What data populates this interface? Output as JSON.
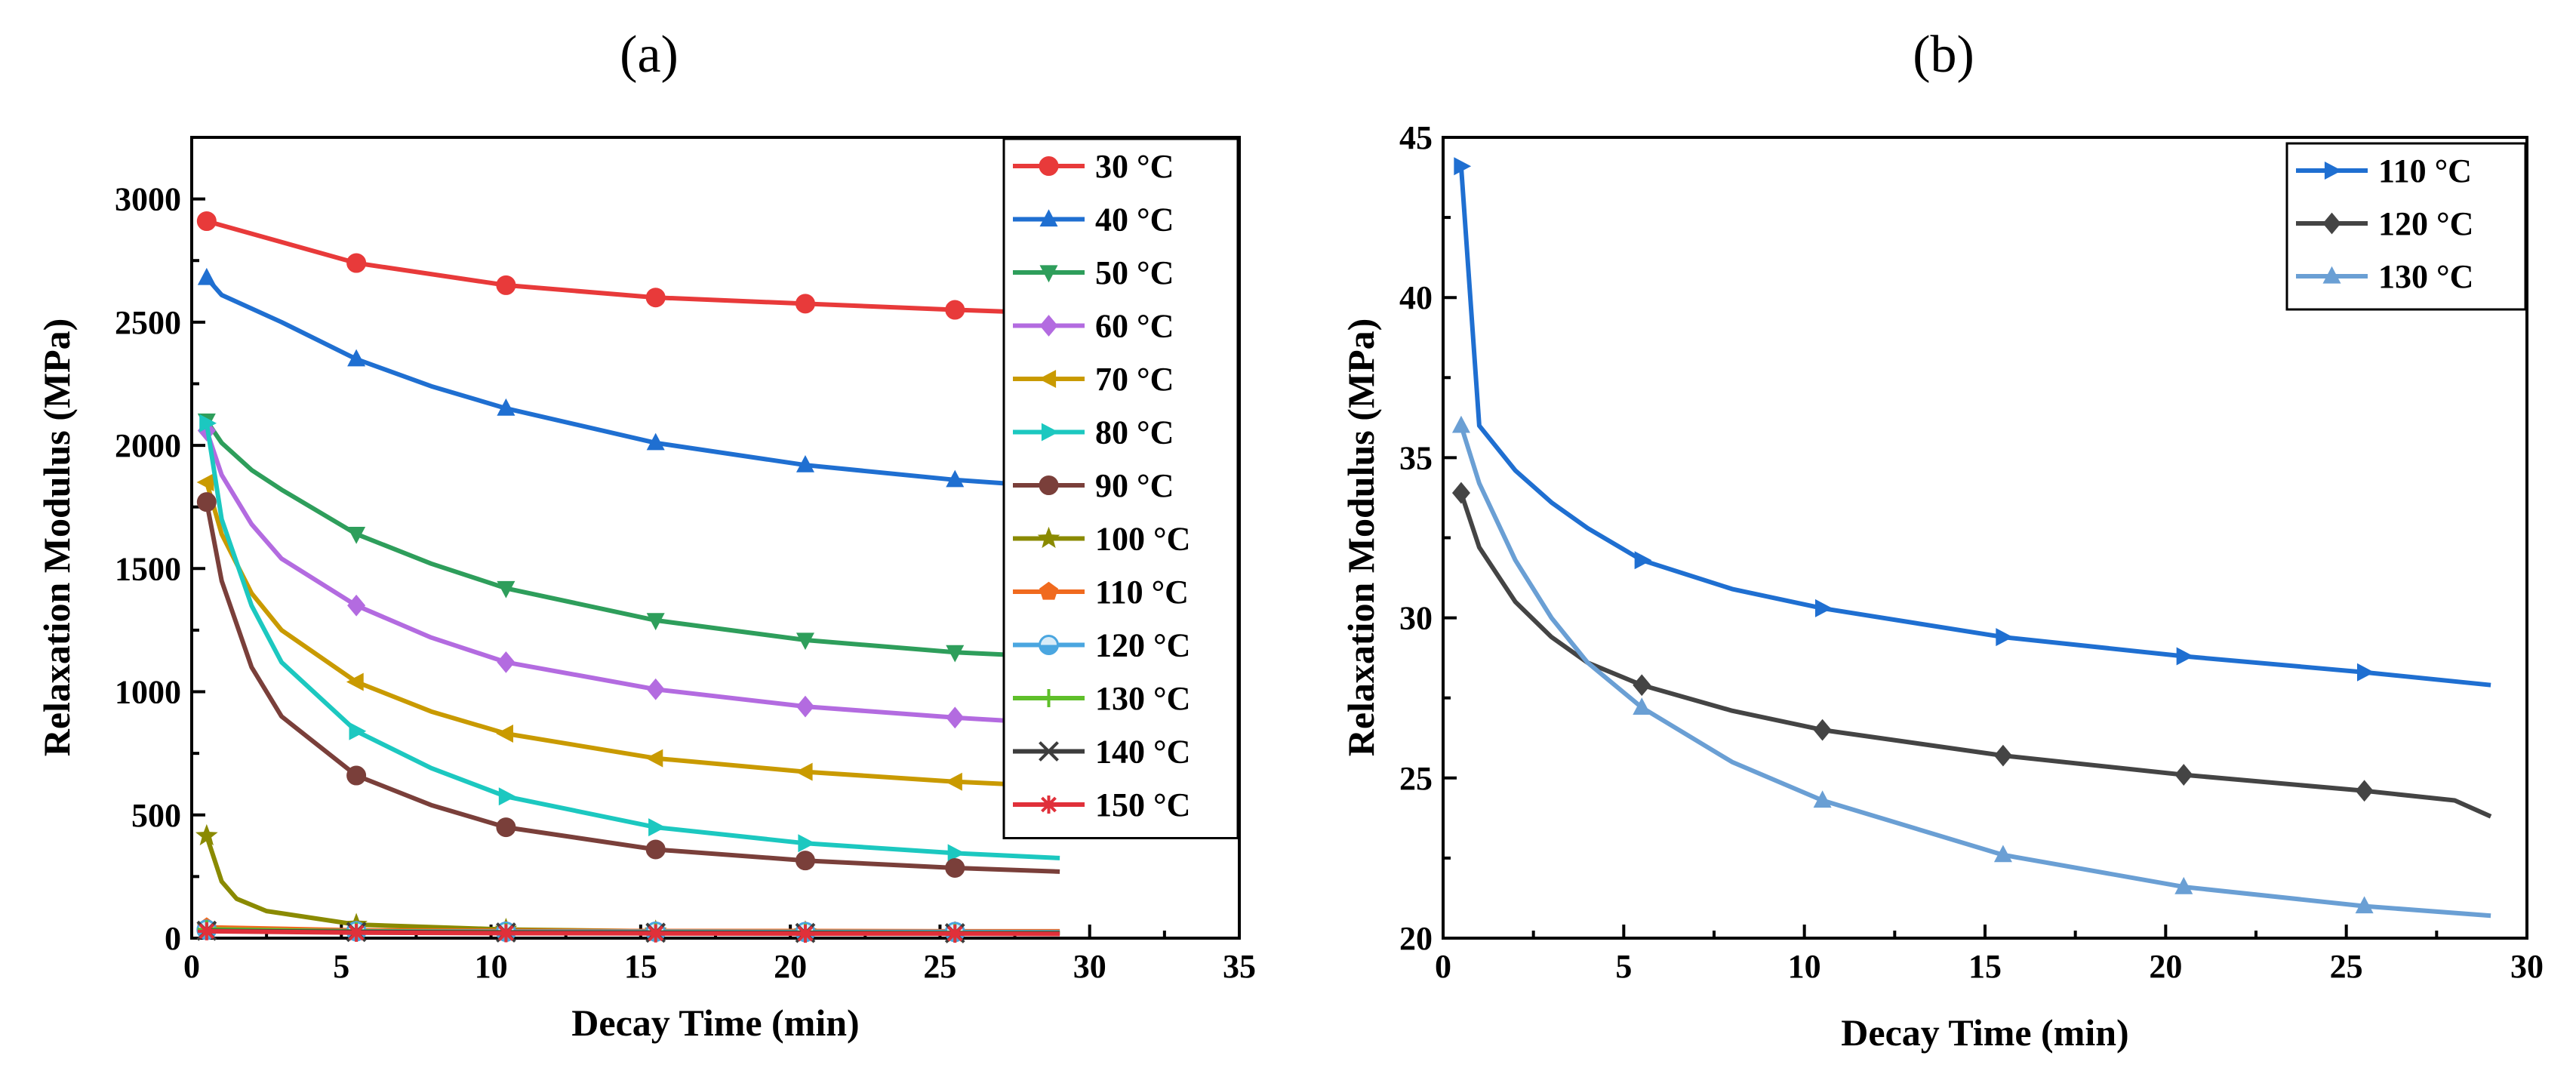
{
  "chart_data": [
    {
      "panel": "(a)",
      "type": "line",
      "xlabel": "Decay Time (min)",
      "ylabel": "Relaxation Modulus (MPa)",
      "xlim": [
        0,
        35
      ],
      "ylim": [
        0,
        3250
      ],
      "xticks": [
        0,
        5,
        10,
        15,
        20,
        25,
        30,
        35
      ],
      "yticks": [
        0,
        500,
        1000,
        1500,
        2000,
        2500,
        3000
      ],
      "legend_position": "top-right",
      "marker_x": [
        0.5,
        5.5,
        10.5,
        15.5,
        20.5,
        25.5
      ],
      "series": [
        {
          "name": "30 °C",
          "color": "#e83a3a",
          "marker": "circle",
          "x": [
            0.5,
            5.5,
            10.5,
            15.5,
            20.5,
            25.5,
            29
          ],
          "values": [
            2910,
            2740,
            2650,
            2600,
            2575,
            2550,
            2535
          ]
        },
        {
          "name": "40 °C",
          "color": "#1f6fd1",
          "marker": "triangle-up",
          "x": [
            0.5,
            1,
            3,
            5.5,
            8,
            10.5,
            15.5,
            20.5,
            25.5,
            29
          ],
          "values": [
            2680,
            2610,
            2500,
            2350,
            2240,
            2150,
            2010,
            1920,
            1860,
            1830
          ]
        },
        {
          "name": "50 °C",
          "color": "#2e9e5b",
          "marker": "triangle-down",
          "x": [
            0.5,
            1,
            2,
            3,
            5.5,
            8,
            10.5,
            15.5,
            20.5,
            25.5,
            29
          ],
          "values": [
            2100,
            2010,
            1900,
            1820,
            1640,
            1520,
            1420,
            1290,
            1210,
            1160,
            1140
          ]
        },
        {
          "name": "60 °C",
          "color": "#b36be0",
          "marker": "diamond",
          "x": [
            0.5,
            1,
            2,
            3,
            5.5,
            8,
            10.5,
            15.5,
            20.5,
            25.5,
            29
          ],
          "values": [
            2060,
            1880,
            1680,
            1540,
            1350,
            1220,
            1120,
            1010,
            940,
            895,
            870
          ]
        },
        {
          "name": "70 °C",
          "color": "#c99a00",
          "marker": "triangle-left",
          "x": [
            0.5,
            1,
            2,
            3,
            5.5,
            8,
            10.5,
            15.5,
            20.5,
            25.5,
            29
          ],
          "values": [
            1850,
            1640,
            1400,
            1250,
            1040,
            920,
            830,
            730,
            675,
            635,
            615
          ]
        },
        {
          "name": "80 °C",
          "color": "#1cc8c0",
          "marker": "triangle-right",
          "x": [
            0.5,
            1,
            2,
            3,
            5.5,
            8,
            10.5,
            15.5,
            20.5,
            25.5,
            29
          ],
          "values": [
            2090,
            1700,
            1350,
            1120,
            840,
            690,
            575,
            450,
            385,
            345,
            325
          ]
        },
        {
          "name": "90 °C",
          "color": "#7a3f3a",
          "marker": "circle",
          "x": [
            0.5,
            1,
            2,
            3,
            5.5,
            8,
            10.5,
            15.5,
            20.5,
            25.5,
            29
          ],
          "values": [
            1770,
            1450,
            1100,
            900,
            660,
            540,
            450,
            360,
            315,
            285,
            270
          ]
        },
        {
          "name": "100 °C",
          "color": "#8a8a00",
          "marker": "star",
          "x": [
            0.5,
            1,
            1.5,
            2.5,
            5.5,
            10.5,
            15.5,
            20.5,
            25.5,
            29
          ],
          "values": [
            415,
            230,
            160,
            110,
            55,
            35,
            28,
            25,
            22,
            20
          ]
        },
        {
          "name": "110 °C",
          "color": "#f06a1e",
          "marker": "pentagon",
          "x": [
            0.5,
            5.5,
            10.5,
            15.5,
            20.5,
            25.5,
            29
          ],
          "values": [
            44,
            32,
            30,
            29,
            29,
            28,
            28
          ]
        },
        {
          "name": "120 °C",
          "color": "#4aa6e0",
          "marker": "circle-half",
          "x": [
            0.5,
            5.5,
            10.5,
            15.5,
            20.5,
            25.5,
            29
          ],
          "values": [
            34,
            28,
            26,
            26,
            25,
            25,
            24
          ]
        },
        {
          "name": "130 °C",
          "color": "#5fbf2a",
          "marker": "plus",
          "x": [
            0.5,
            5.5,
            10.5,
            15.5,
            20.5,
            25.5,
            29
          ],
          "values": [
            36,
            27,
            24,
            23,
            22,
            21,
            21
          ]
        },
        {
          "name": "140 °C",
          "color": "#3d3d3d",
          "marker": "cross",
          "x": [
            0.5,
            5.5,
            10.5,
            15.5,
            20.5,
            25.5,
            29
          ],
          "values": [
            30,
            25,
            23,
            22,
            21,
            20,
            20
          ]
        },
        {
          "name": "150 °C",
          "color": "#e0303a",
          "marker": "asterisk",
          "x": [
            0.5,
            5.5,
            10.5,
            15.5,
            20.5,
            25.5,
            29
          ],
          "values": [
            28,
            22,
            20,
            19,
            18,
            18,
            17
          ]
        }
      ]
    },
    {
      "panel": "(b)",
      "type": "line",
      "xlabel": "Decay Time (min)",
      "ylabel": "Relaxation Modulus (MPa)",
      "xlim": [
        0,
        30
      ],
      "ylim": [
        20,
        45
      ],
      "xticks": [
        0,
        5,
        10,
        15,
        20,
        25,
        30
      ],
      "yticks": [
        20,
        25,
        30,
        35,
        40,
        45
      ],
      "legend_position": "top-right",
      "marker_x": [
        0.5,
        5.5,
        10.5,
        15.5,
        20.5,
        25.5
      ],
      "series": [
        {
          "name": "110 °C",
          "color": "#1f6fd1",
          "marker": "triangle-right",
          "x": [
            0.5,
            1,
            2,
            3,
            4,
            5.5,
            8,
            10.5,
            15.5,
            20.5,
            25.5,
            29
          ],
          "values": [
            44.1,
            36.0,
            34.6,
            33.6,
            32.8,
            31.8,
            30.9,
            30.3,
            29.4,
            28.8,
            28.3,
            27.9
          ]
        },
        {
          "name": "120 °C",
          "color": "#444444",
          "marker": "diamond",
          "x": [
            0.5,
            1,
            2,
            3,
            4,
            5.5,
            8,
            10.5,
            15.5,
            20.5,
            25.5,
            28,
            29
          ],
          "values": [
            33.9,
            32.2,
            30.5,
            29.4,
            28.6,
            27.9,
            27.1,
            26.5,
            25.7,
            25.1,
            24.6,
            24.3,
            23.8
          ]
        },
        {
          "name": "130 °C",
          "color": "#6a9fd4",
          "marker": "triangle-up",
          "x": [
            0.5,
            1,
            2,
            3,
            4,
            5.5,
            8,
            10.5,
            15.5,
            20.5,
            25.5,
            29
          ],
          "values": [
            36.0,
            34.2,
            31.8,
            30.0,
            28.6,
            27.2,
            25.5,
            24.3,
            22.6,
            21.6,
            21.0,
            20.7
          ]
        }
      ]
    }
  ]
}
